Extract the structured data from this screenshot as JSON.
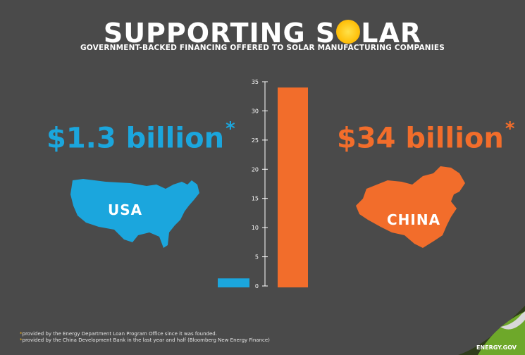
{
  "title_part1": "SUPPORTING S",
  "title_part2": "LAR",
  "subtitle": "GOVERNMENT-BACKED FINANCING OFFERED TO SOLAR MANUFACTURING COMPANIES",
  "usa": {
    "value_text": "$1.3 billion",
    "asterisk": "*",
    "label": "USA",
    "color": "#1ba6dd"
  },
  "china": {
    "value_text": "$34 billion",
    "asterisk": "*",
    "label": "CHINA",
    "color": "#f26d2b"
  },
  "footnotes": [
    "provided by the Energy Department Loan Program Office since it was founded.",
    "provided by the China Development Bank in the last year and half (Bloomberg New Energy Finance)"
  ],
  "footnote_marker": "*",
  "brand": "ENERGY.GOV",
  "chart_data": {
    "type": "bar",
    "categories": [
      "USA",
      "China"
    ],
    "values": [
      1.3,
      34
    ],
    "ylim": [
      0,
      35
    ],
    "yticks": [
      0,
      5,
      10,
      15,
      20,
      25,
      30,
      35
    ],
    "colors": [
      "#1ba6dd",
      "#f26d2b"
    ],
    "grid": false
  }
}
